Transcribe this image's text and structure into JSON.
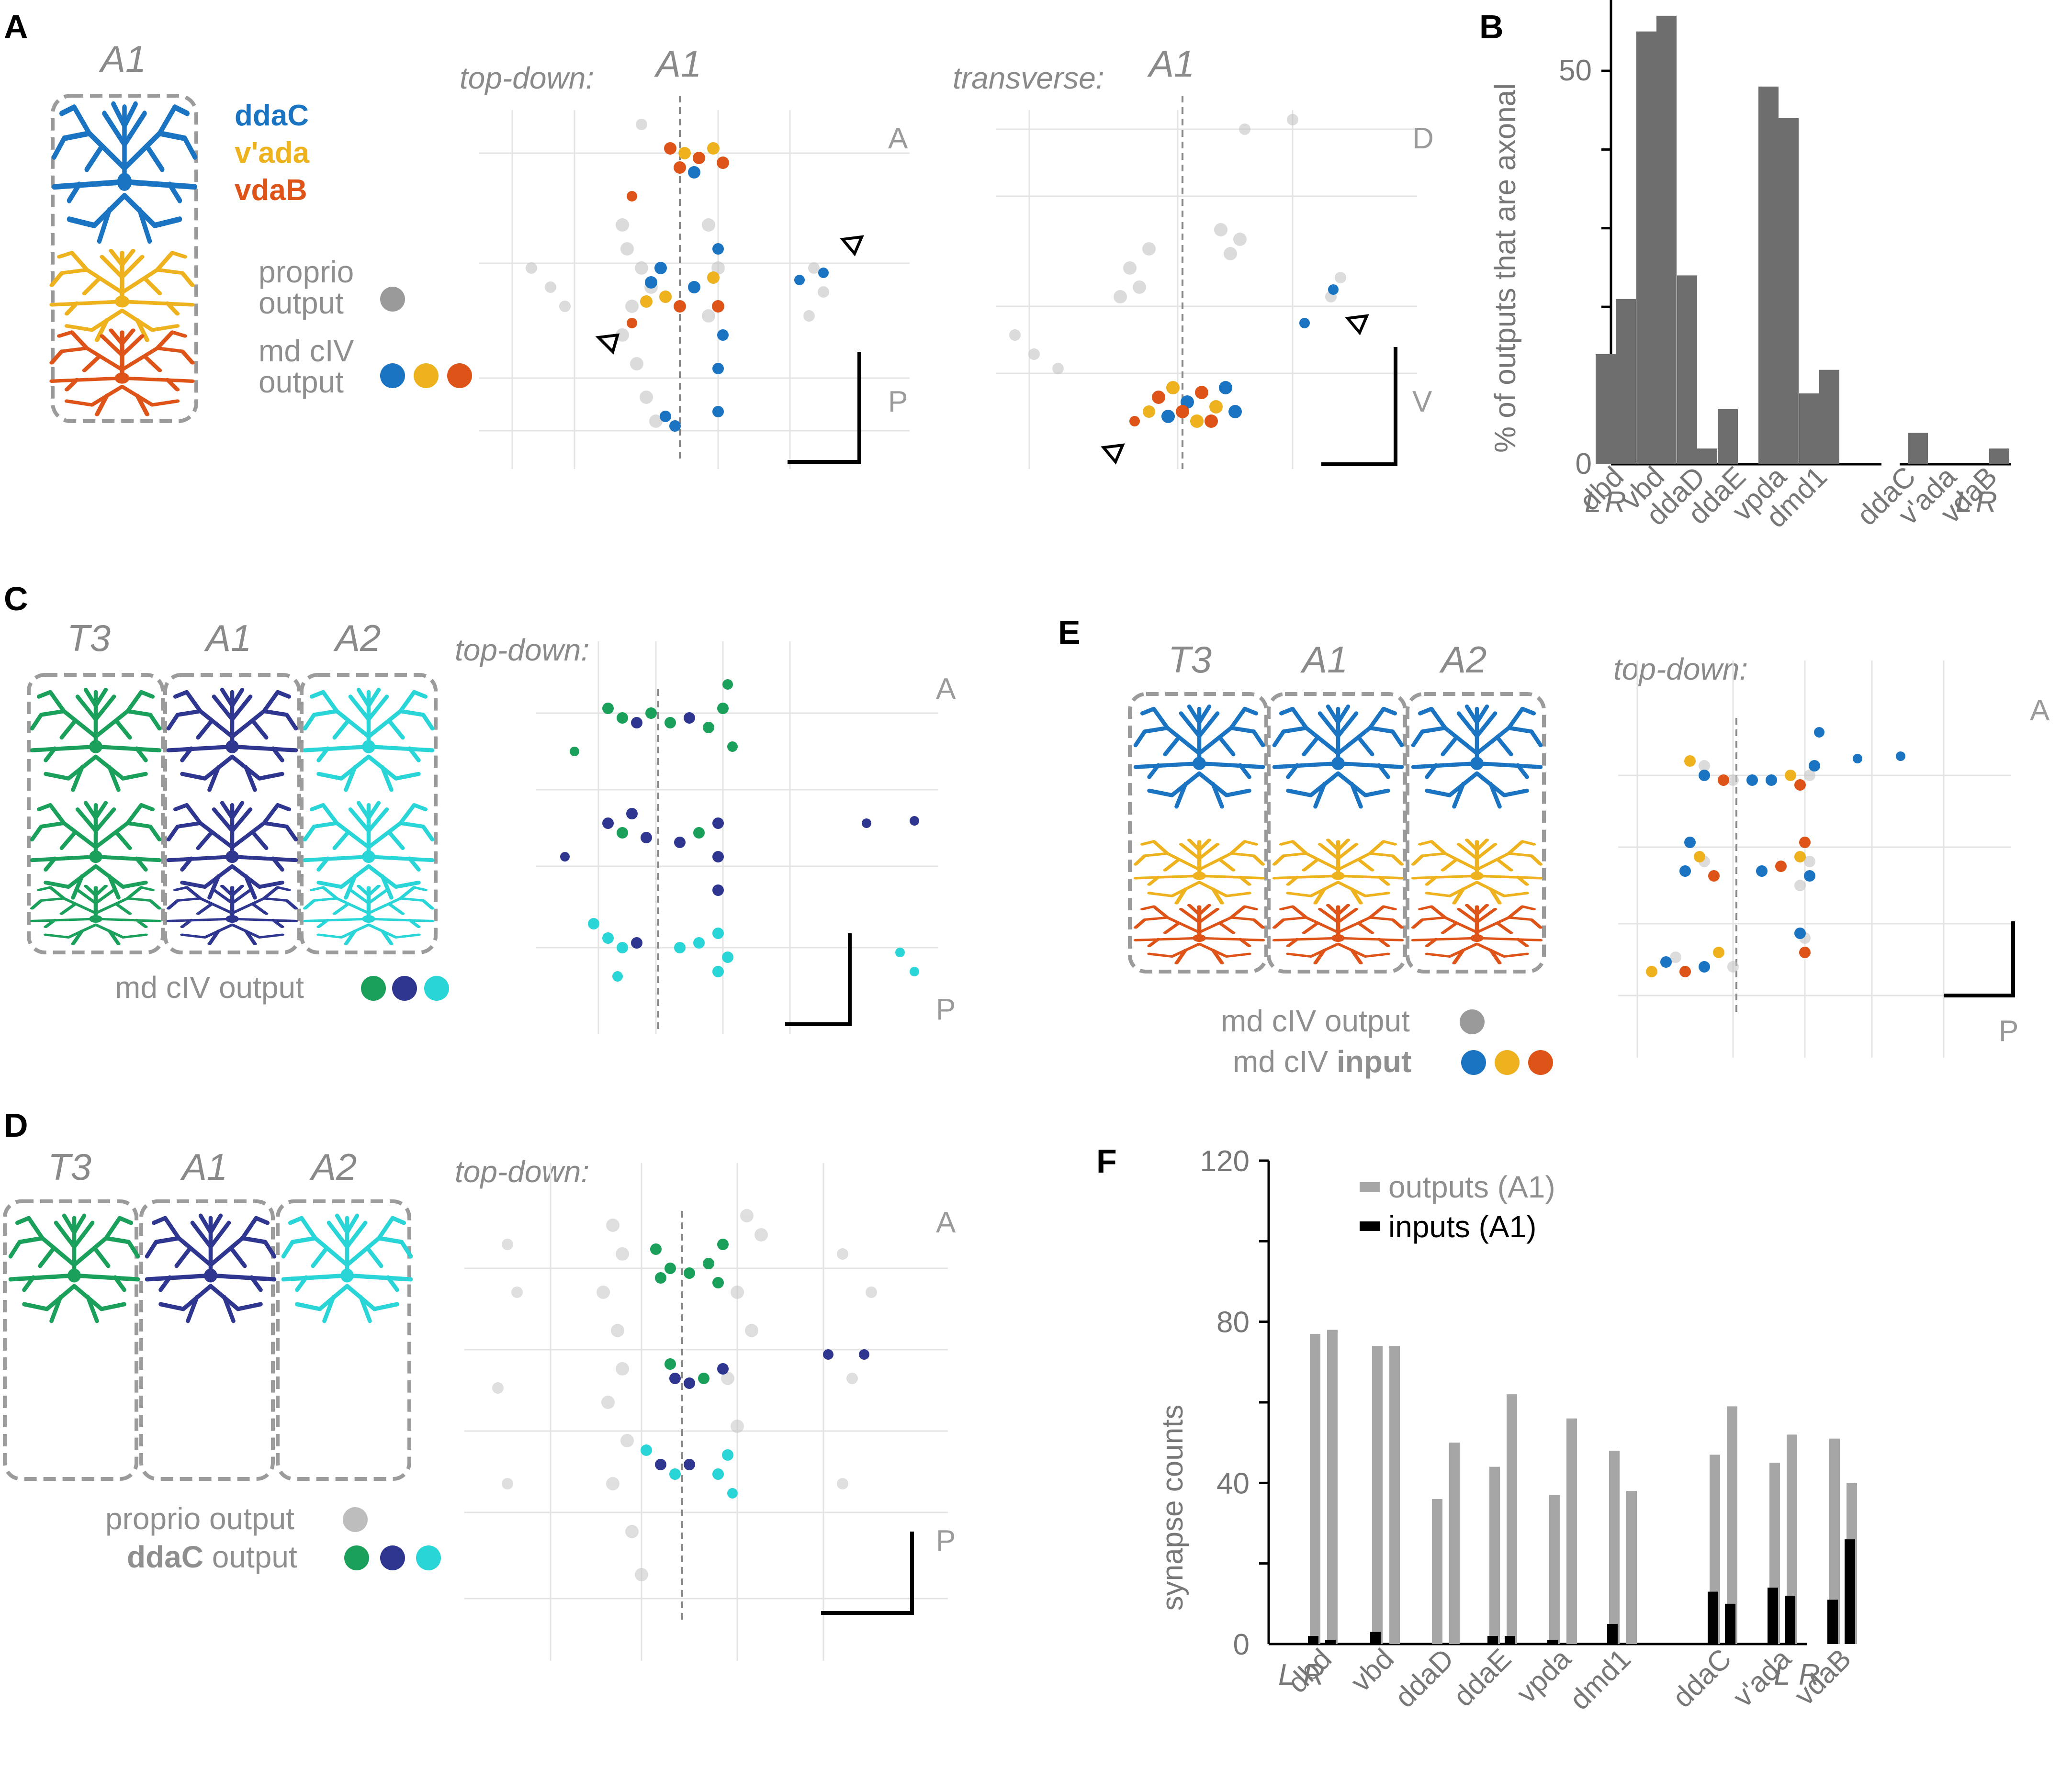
{
  "panels": {
    "A": {
      "label": "A",
      "segment": "A1",
      "neurons": [
        "ddaC",
        "v'ada",
        "vdaB"
      ],
      "proprio_legend": [
        "proprio",
        "output"
      ],
      "md_legend": [
        "md cIV",
        "output"
      ],
      "views": [
        {
          "title": "top-down:",
          "segment": "A1",
          "dir_top": "A",
          "dir_bottom": "P"
        },
        {
          "title": "transverse:",
          "segment": "A1",
          "dir_top": "D",
          "dir_bottom": "V"
        }
      ]
    },
    "C": {
      "label": "C",
      "segments": [
        "T3",
        "A1",
        "A2"
      ],
      "legend": "md cIV output",
      "view": {
        "title": "top-down:",
        "dir_top": "A",
        "dir_bottom": "P"
      }
    },
    "D": {
      "label": "D",
      "segments": [
        "T3",
        "A1",
        "A2"
      ],
      "legend1": "proprio output",
      "legend2_bold": "ddaC",
      "legend2_rest": " output",
      "view": {
        "title": "top-down:",
        "dir_top": "A",
        "dir_bottom": "P"
      }
    },
    "E": {
      "label": "E",
      "segments": [
        "T3",
        "A1",
        "A2"
      ],
      "legend1": "md cIV output",
      "legend2_pre": "md cIV ",
      "legend2_bold": "input",
      "view": {
        "title": "top-down:",
        "dir_top": "A",
        "dir_bottom": "P"
      }
    },
    "B": {
      "label": "B"
    },
    "F": {
      "label": "F"
    }
  },
  "colors": {
    "ddaC": "#1a74c2",
    "vada": "#eeb21e",
    "vdaB": "#de5418",
    "T3": "#1aa05a",
    "A1": "#2e3690",
    "A2": "#2ad5d8",
    "bar_gray": "#6e6e6e",
    "out_gray": "#a6a6a6",
    "in_black": "#000000",
    "point_gray": "#c4c4c4"
  },
  "chart_data": [
    {
      "type": "bar",
      "panel": "B",
      "title": "",
      "ylabel": "% of outputs that are axonal",
      "yticks": [
        0,
        50
      ],
      "ylim": [
        0,
        59
      ],
      "lr_label": [
        "L",
        "R"
      ],
      "categories": [
        "dbd",
        "vbd",
        "ddaD",
        "ddaE",
        "vpda",
        "dmd1",
        "ddaC",
        "v'ada",
        "vdaB"
      ],
      "values_L": [
        14,
        55,
        24,
        7,
        48,
        9,
        0,
        0,
        0
      ],
      "values_R": [
        21,
        57,
        2,
        0,
        44,
        12,
        4,
        0,
        2
      ]
    },
    {
      "type": "bar",
      "panel": "F",
      "title": "",
      "ylabel": "synapse counts",
      "yticks": [
        0,
        40,
        80,
        120
      ],
      "ylim": [
        0,
        120
      ],
      "lr_label": [
        "L",
        "R"
      ],
      "categories": [
        "dbd",
        "vbd",
        "ddaD",
        "ddaE",
        "vpda",
        "dmd1",
        "ddaC",
        "v'ada",
        "vdaB"
      ],
      "series": [
        {
          "name": "outputs (A1)",
          "L": [
            77,
            74,
            36,
            44,
            37,
            48,
            47,
            45,
            51
          ],
          "R": [
            78,
            74,
            50,
            62,
            56,
            38,
            59,
            52,
            40
          ]
        },
        {
          "name": "inputs (A1)",
          "L": [
            2,
            3,
            0,
            2,
            1,
            5,
            13,
            14,
            11
          ],
          "R": [
            1,
            0,
            0,
            2,
            0,
            0,
            10,
            12,
            26
          ]
        }
      ]
    }
  ]
}
